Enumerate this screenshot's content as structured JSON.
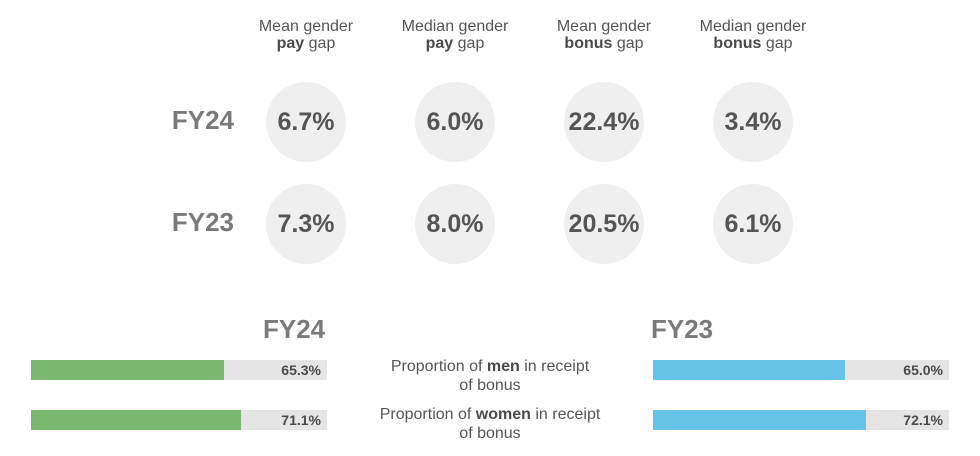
{
  "metrics": [
    {
      "line1": "Mean gender",
      "bold": "pay",
      "rest": "gap"
    },
    {
      "line1": "Median gender",
      "bold": "pay",
      "rest": "gap"
    },
    {
      "line1": "Mean gender",
      "bold": "bonus",
      "rest": "gap"
    },
    {
      "line1": "Median gender",
      "bold": "bonus",
      "rest": "gap"
    }
  ],
  "rows": [
    {
      "label": "FY24",
      "values": [
        "6.7%",
        "6.0%",
        "22.4%",
        "3.4%"
      ]
    },
    {
      "label": "FY23",
      "values": [
        "7.3%",
        "8.0%",
        "20.5%",
        "6.1%"
      ]
    }
  ],
  "bonus_labels": [
    {
      "pre": "Proportion of",
      "bold": "men",
      "post": "in receipt",
      "line2": "of bonus"
    },
    {
      "pre": "Proportion of",
      "bold": "women",
      "post": "in receipt",
      "line2": "of bonus"
    }
  ],
  "colors": {
    "fy24": "#7ab870",
    "fy23": "#66c2e8",
    "track": "#e5e5e5",
    "circle": "#efefef"
  },
  "chart_data": [
    {
      "type": "table",
      "columns": [
        "Mean gender pay gap",
        "Median gender pay gap",
        "Mean gender bonus gap",
        "Median gender bonus gap"
      ],
      "rows": [
        {
          "label": "FY24",
          "values": [
            6.7,
            6.0,
            22.4,
            3.4
          ]
        },
        {
          "label": "FY23",
          "values": [
            7.3,
            8.0,
            20.5,
            6.1
          ]
        }
      ],
      "unit": "%"
    },
    {
      "type": "bar",
      "title": "FY24",
      "categories": [
        "Proportion of men in receipt of bonus",
        "Proportion of women in receipt of bonus"
      ],
      "values": [
        65.3,
        71.1
      ],
      "value_labels": [
        "65.3%",
        "71.1%"
      ],
      "color": "#7ab870",
      "ylim": [
        0,
        100
      ]
    },
    {
      "type": "bar",
      "title": "FY23",
      "categories": [
        "Proportion of men in receipt of bonus",
        "Proportion of women in receipt of bonus"
      ],
      "values": [
        65.0,
        72.1
      ],
      "value_labels": [
        "65.0%",
        "72.1%"
      ],
      "color": "#66c2e8",
      "ylim": [
        0,
        100
      ]
    }
  ]
}
